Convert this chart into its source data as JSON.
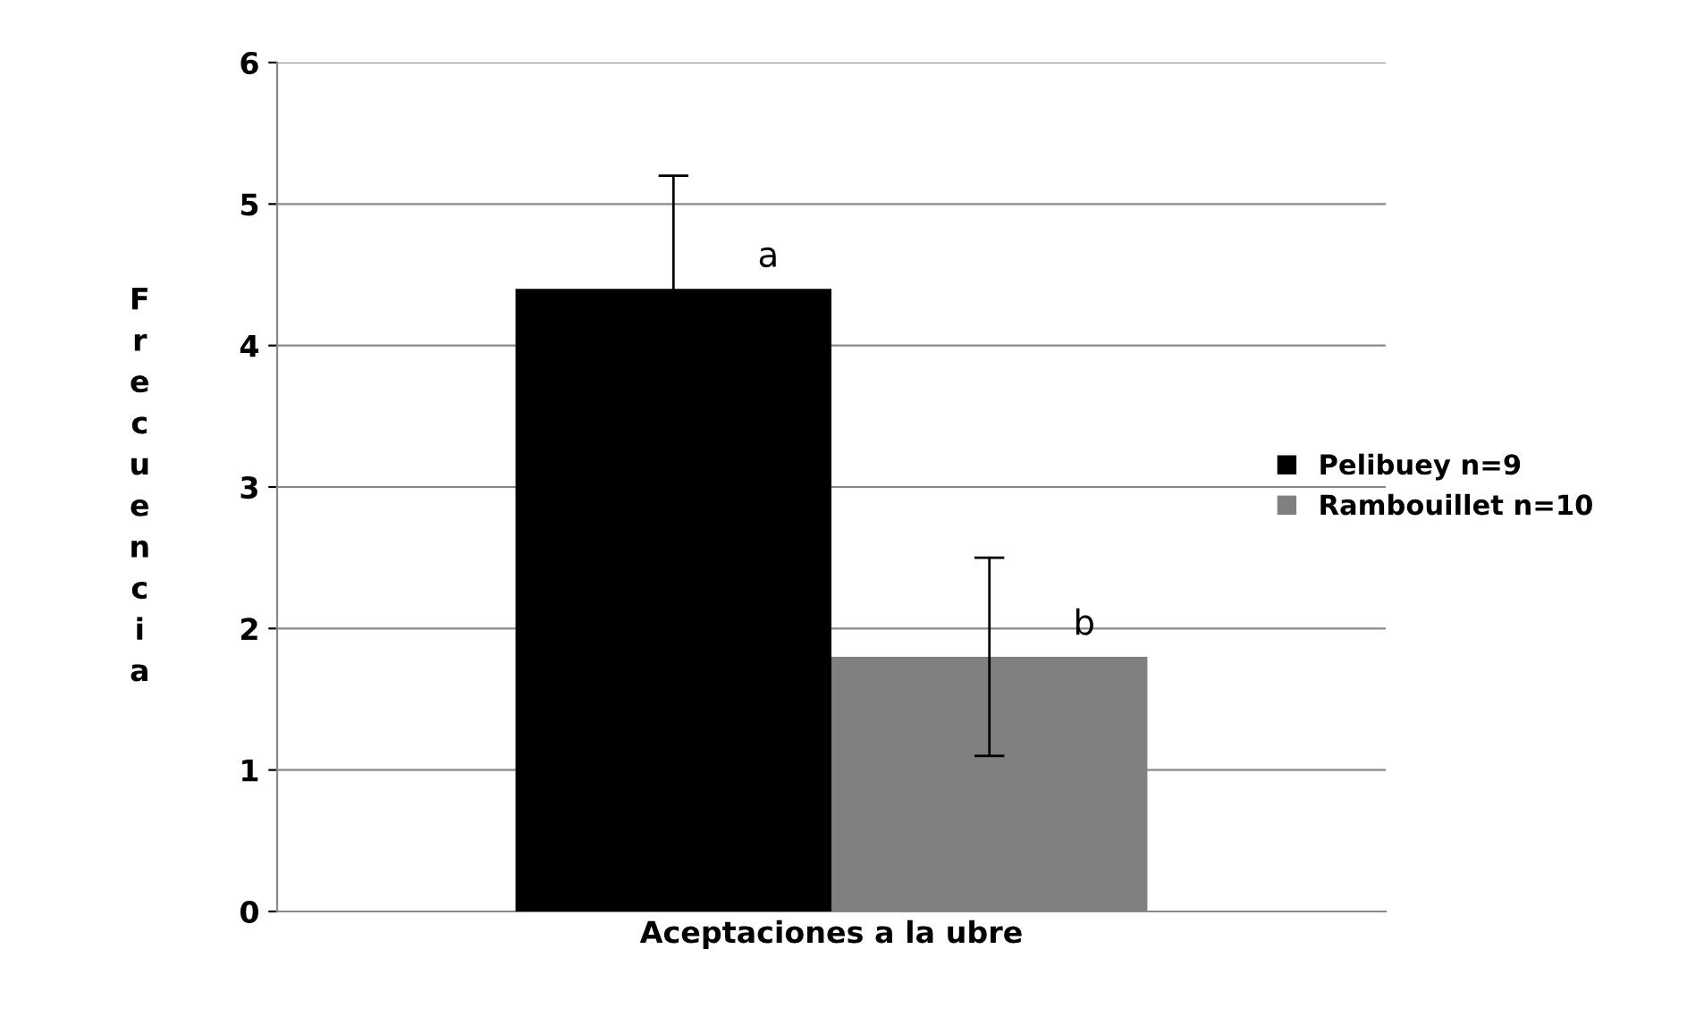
{
  "chart_data": {
    "type": "bar",
    "ylabel": "Frecuencia",
    "categories": [
      "Aceptaciones a la ubre"
    ],
    "series": [
      {
        "name": "Pelibuey n=9",
        "color": "#000000",
        "values": [
          4.4
        ],
        "errors": [
          0.8
        ]
      },
      {
        "name": "Rambouillet n=10",
        "color": "#808080",
        "values": [
          1.8
        ],
        "errors": [
          0.7
        ]
      }
    ],
    "annotations": [
      "a",
      "b"
    ],
    "ylim": [
      0,
      6
    ],
    "yticks": [
      0,
      1,
      2,
      3,
      4,
      5,
      6
    ],
    "grid": "y",
    "legend": "right"
  }
}
